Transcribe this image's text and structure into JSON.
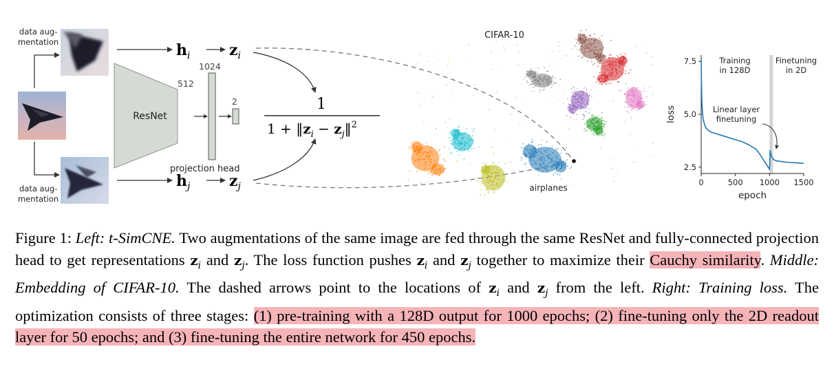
{
  "left_panel": {
    "aug_label_1": "data aug-",
    "aug_label_2": "mentation",
    "encoder_label": "ResNet",
    "dim_512": "512",
    "dim_1024": "1024",
    "dim_2": "2",
    "projection_head_label": "projection head",
    "h_sym": "h",
    "z_sym": "z",
    "sub_i": "i",
    "sub_j": "j",
    "formula_numerator": "1",
    "formula_denominator_prefix": "1 + ‖",
    "formula_minus": " − ",
    "formula_denominator_suffix": "‖",
    "formula_exponent": "2"
  },
  "middle_panel": {
    "title": "CIFAR-10",
    "airplanes_label": "airplanes",
    "cluster_colors": [
      "#ff7f0e",
      "#17becf",
      "#bcbd22",
      "#1f77b4",
      "#2ca02c",
      "#9467bd",
      "#e377c2",
      "#7f7f7f",
      "#d62728",
      "#8c564b"
    ]
  },
  "chart_data": {
    "type": "line",
    "xlabel": "epoch",
    "ylabel": "loss",
    "xlim": [
      0,
      1500
    ],
    "ylim": [
      2.2,
      7.8
    ],
    "xticks": [
      0,
      500,
      1000,
      1500
    ],
    "yticks": [
      2.5,
      5.0,
      7.5
    ],
    "xtick_labels": [
      "0",
      "500",
      "1000",
      "1500"
    ],
    "ytick_labels": [
      "2.5",
      "5.0",
      "7.5"
    ],
    "annotation_training_1": "Training",
    "annotation_training_2": "in 128D",
    "annotation_finetune2d_1": "Finetuning",
    "annotation_finetune2d_2": "in 2D",
    "annotation_linear_1": "Linear layer",
    "annotation_linear_2": "finetuning",
    "shaded_region": [
      1000,
      1050
    ],
    "series": [
      {
        "color": "#1f77b4",
        "x": [
          0,
          5,
          10,
          20,
          30,
          50,
          70,
          100,
          150,
          200,
          300,
          400,
          500,
          600,
          700,
          800,
          850,
          900,
          950,
          980,
          1000,
          1010,
          1020,
          1030,
          1040,
          1050,
          1060,
          1100,
          1200,
          1300,
          1400,
          1500
        ],
        "y": [
          7.6,
          6.3,
          5.6,
          5.0,
          4.75,
          4.5,
          4.35,
          4.25,
          4.15,
          4.1,
          4.0,
          3.9,
          3.8,
          3.7,
          3.55,
          3.35,
          3.15,
          2.9,
          2.65,
          2.5,
          2.4,
          3.3,
          3.1,
          3.0,
          2.95,
          2.9,
          2.85,
          2.8,
          2.75,
          2.72,
          2.7,
          2.68
        ]
      }
    ]
  },
  "caption": {
    "fig_label": "Figure 1: ",
    "left_title": "Left: t-SimCNE.",
    "s1": " Two augmentations of the same image are fed through the same ResNet and fully-connected projection head to get representations ",
    "z": "z",
    "i": "i",
    "j": "j",
    "and": " and ",
    "s2": ". The loss function pushes ",
    "s3": " together to maximize their ",
    "cauchy": "Cauchy similarity",
    "period": ".",
    "middle_title": " Middle: Embedding of CIFAR-10.",
    "s4": " The dashed arrows point to the locations of ",
    "s5": " from the left. ",
    "right_title": "Right: Training loss.",
    "s6": " The optimization consists of three stages: ",
    "stages": "(1) pre-training with a 128D output for 1000 epochs; (2) fine-tuning only the 2D readout layer for 50 epochs; and (3) fine-tuning the entire network for 450 epochs."
  }
}
